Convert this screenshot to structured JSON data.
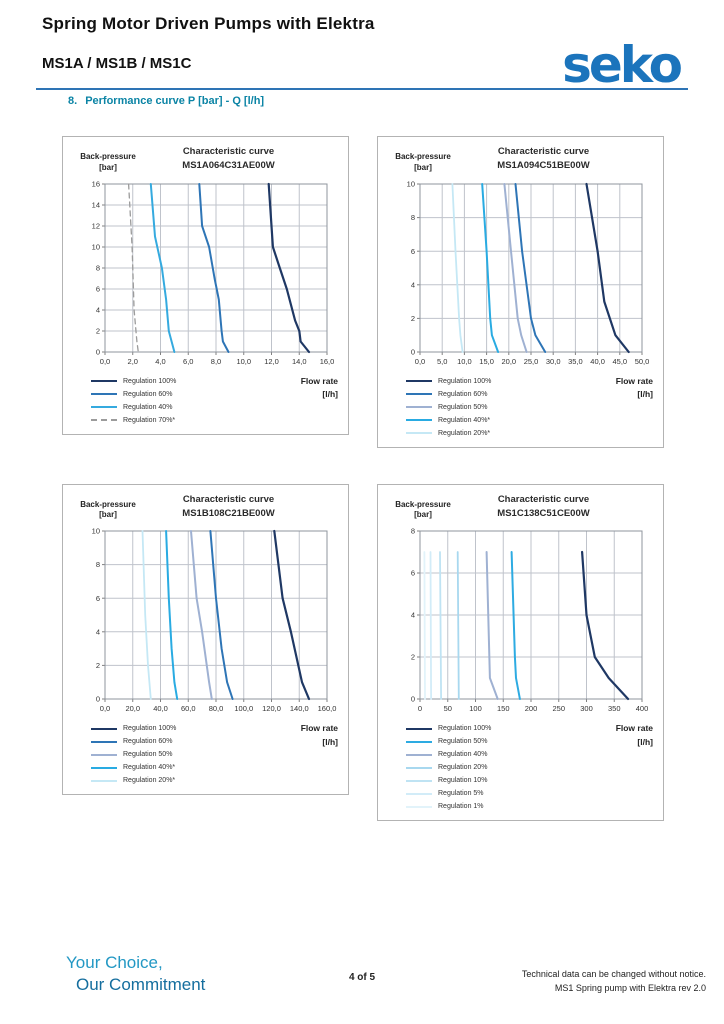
{
  "header": {
    "title": "Spring Motor Driven Pumps with Elektra",
    "subtitle": "MS1A / MS1B / MS1C",
    "logo_text": "seko",
    "brand_color": "#1b74bc",
    "rule_color": "#2e74b5"
  },
  "section": {
    "number": "8.",
    "heading": "Performance curve P [bar] - Q [l/h]",
    "color": "#0b84a5"
  },
  "footer": {
    "tagline_line1": "Your Choice,",
    "tagline_line2": "Our Commitment",
    "page_info": "4 of 5",
    "note_line1": "Technical data can be changed without notice.",
    "note_line2": "MS1 Spring pump with Elektra rev 2.0"
  },
  "chart_data": [
    {
      "type": "line",
      "title": "Characteristic curve",
      "subtitle": "MS1A064C31AE00W",
      "ylabel_line1": "Back-pressure",
      "ylabel_line2": "[bar]",
      "xlabel_line1": "Flow rate",
      "xlabel_line2": "[l/h]",
      "xlim": [
        0,
        16
      ],
      "ylim": [
        0,
        16
      ],
      "grid": true,
      "legend_position": "bottom-left",
      "x_tick_labels": [
        "0,0",
        "2,0",
        "4,0",
        "6,0",
        "8,0",
        "10,0",
        "12,0",
        "14,0",
        "16,0"
      ],
      "y_tick_labels": [
        "0",
        "2",
        "4",
        "6",
        "8",
        "10",
        "12",
        "14",
        "16"
      ],
      "series": [
        {
          "name": "Regulation 100%",
          "color": "#1f3864",
          "width": 2.2,
          "dash": false,
          "points": [
            [
              11.8,
              16
            ],
            [
              12.0,
              12
            ],
            [
              12.1,
              10
            ],
            [
              12.6,
              8
            ],
            [
              13.1,
              6
            ],
            [
              13.7,
              3
            ],
            [
              14.0,
              2
            ],
            [
              14.1,
              1
            ],
            [
              14.7,
              0
            ]
          ]
        },
        {
          "name": "Regulation 60%",
          "color": "#2e75b6",
          "width": 2,
          "dash": false,
          "points": [
            [
              6.8,
              16
            ],
            [
              7.0,
              12
            ],
            [
              7.5,
              10
            ],
            [
              7.9,
              7
            ],
            [
              8.2,
              5
            ],
            [
              8.4,
              2
            ],
            [
              8.5,
              1
            ],
            [
              8.9,
              0
            ]
          ]
        },
        {
          "name": "Regulation 40%",
          "color": "#35aadf",
          "width": 2,
          "dash": false,
          "points": [
            [
              3.3,
              16
            ],
            [
              3.6,
              11
            ],
            [
              4.1,
              8
            ],
            [
              4.4,
              5
            ],
            [
              4.6,
              2
            ],
            [
              4.8,
              1
            ],
            [
              5.0,
              0
            ]
          ]
        },
        {
          "name": "Regulation 70%*",
          "color": "#9b9b9b",
          "width": 1.3,
          "dash": true,
          "points": [
            [
              1.7,
              16
            ],
            [
              1.95,
              10
            ],
            [
              2.1,
              4
            ],
            [
              2.3,
              1
            ],
            [
              2.4,
              0
            ]
          ]
        }
      ]
    },
    {
      "type": "line",
      "title": "Characteristic curve",
      "subtitle": "MS1A094C51BE00W",
      "ylabel_line1": "Back-pressure",
      "ylabel_line2": "[bar]",
      "xlabel_line1": "Flow rate",
      "xlabel_line2": "[l/h]",
      "xlim": [
        0,
        50
      ],
      "ylim": [
        0,
        10
      ],
      "grid": true,
      "legend_position": "bottom-left",
      "x_tick_labels": [
        "0,0",
        "5,0",
        "10,0",
        "15,0",
        "20,0",
        "25,0",
        "30,0",
        "35,0",
        "40,0",
        "45,0",
        "50,0"
      ],
      "y_tick_labels": [
        "0",
        "2",
        "4",
        "6",
        "8",
        "10"
      ],
      "series": [
        {
          "name": "Regulation 100%",
          "color": "#1f3864",
          "width": 2.2,
          "dash": false,
          "points": [
            [
              37.5,
              10
            ],
            [
              40,
              6
            ],
            [
              41.5,
              3
            ],
            [
              44,
              1
            ],
            [
              47,
              0
            ]
          ]
        },
        {
          "name": "Regulation 60%",
          "color": "#2e75b6",
          "width": 2,
          "dash": false,
          "points": [
            [
              21.5,
              10
            ],
            [
              23,
              6
            ],
            [
              25,
              2
            ],
            [
              26,
              1
            ],
            [
              28.2,
              0
            ]
          ]
        },
        {
          "name": "Regulation 50%",
          "color": "#9fb1d2",
          "width": 2,
          "dash": false,
          "points": [
            [
              19,
              10
            ],
            [
              20.5,
              6
            ],
            [
              22,
              2
            ],
            [
              22.8,
              1
            ],
            [
              24,
              0
            ]
          ]
        },
        {
          "name": "Regulation 40%*",
          "color": "#29abe2",
          "width": 2,
          "dash": false,
          "points": [
            [
              14,
              10
            ],
            [
              15,
              6
            ],
            [
              15.8,
              2
            ],
            [
              16.2,
              1
            ],
            [
              17.6,
              0
            ]
          ]
        },
        {
          "name": "Regulation 20%*",
          "color": "#c5e8f5",
          "width": 1.8,
          "dash": false,
          "points": [
            [
              7.3,
              10
            ],
            [
              8,
              6
            ],
            [
              8.8,
              2
            ],
            [
              9.1,
              1
            ],
            [
              9.6,
              0
            ]
          ]
        }
      ]
    },
    {
      "type": "line",
      "title": "Characteristic curve",
      "subtitle": "MS1B108C21BE00W",
      "ylabel_line1": "Back-pressure",
      "ylabel_line2": "[bar]",
      "xlabel_line1": "Flow rate",
      "xlabel_line2": "[l/h]",
      "xlim": [
        0,
        160
      ],
      "ylim": [
        0,
        10
      ],
      "grid": true,
      "legend_position": "bottom-left",
      "x_tick_labels": [
        "0,0",
        "20,0",
        "40,0",
        "60,0",
        "80,0",
        "100,0",
        "120,0",
        "140,0",
        "160,0"
      ],
      "y_tick_labels": [
        "0",
        "2",
        "4",
        "6",
        "8",
        "10"
      ],
      "series": [
        {
          "name": "Regulation 100%",
          "color": "#1f3864",
          "width": 2.2,
          "dash": false,
          "points": [
            [
              122,
              10
            ],
            [
              128,
              6
            ],
            [
              134,
              4
            ],
            [
              142,
              1
            ],
            [
              147,
              0
            ]
          ]
        },
        {
          "name": "Regulation 60%",
          "color": "#2e75b6",
          "width": 2,
          "dash": false,
          "points": [
            [
              76,
              10
            ],
            [
              80,
              6
            ],
            [
              84,
              3
            ],
            [
              88,
              1
            ],
            [
              92,
              0
            ]
          ]
        },
        {
          "name": "Regulation 50%",
          "color": "#9fb1d2",
          "width": 2,
          "dash": false,
          "points": [
            [
              62,
              10
            ],
            [
              66,
              6
            ],
            [
              70,
              4
            ],
            [
              75,
              1
            ],
            [
              77,
              0
            ]
          ]
        },
        {
          "name": "Regulation 40%*",
          "color": "#29abe2",
          "width": 2,
          "dash": false,
          "points": [
            [
              44,
              10
            ],
            [
              46,
              6
            ],
            [
              48,
              3
            ],
            [
              50,
              1
            ],
            [
              52,
              0
            ]
          ]
        },
        {
          "name": "Regulation 20%*",
          "color": "#c5e8f5",
          "width": 1.8,
          "dash": false,
          "points": [
            [
              27,
              10
            ],
            [
              29,
              5
            ],
            [
              31,
              2
            ],
            [
              33,
              0
            ]
          ]
        }
      ]
    },
    {
      "type": "line",
      "title": "Characteristic curve",
      "subtitle": "MS1C138C51CE00W",
      "ylabel_line1": "Back-pressure",
      "ylabel_line2": "[bar]",
      "xlabel_line1": "Flow rate",
      "xlabel_line2": "[l/h]",
      "xlim": [
        0,
        400
      ],
      "ylim": [
        0,
        8
      ],
      "grid": true,
      "legend_position": "bottom-left",
      "x_tick_labels": [
        "0",
        "50",
        "100",
        "150",
        "200",
        "250",
        "300",
        "350",
        "400"
      ],
      "y_tick_labels": [
        "0",
        "2",
        "4",
        "6",
        "8"
      ],
      "series": [
        {
          "name": "Regulation 100%",
          "color": "#1f3864",
          "width": 2.2,
          "dash": false,
          "points": [
            [
              292,
              7
            ],
            [
              300,
              4
            ],
            [
              315,
              2
            ],
            [
              340,
              1
            ],
            [
              375,
              0
            ]
          ]
        },
        {
          "name": "Regulation 50%",
          "color": "#2dabe2",
          "width": 2,
          "dash": false,
          "points": [
            [
              165,
              7
            ],
            [
              171,
              2
            ],
            [
              173,
              1
            ],
            [
              180,
              0
            ]
          ]
        },
        {
          "name": "Regulation 40%",
          "color": "#9fb1d2",
          "width": 2,
          "dash": false,
          "points": [
            [
              120,
              7
            ],
            [
              126,
              1
            ],
            [
              140,
              0
            ]
          ]
        },
        {
          "name": "Regulation 20%",
          "color": "#a8d8ef",
          "width": 1.8,
          "dash": false,
          "points": [
            [
              68,
              7
            ],
            [
              70,
              0
            ]
          ]
        },
        {
          "name": "Regulation 10%",
          "color": "#bfe3f3",
          "width": 1.8,
          "dash": false,
          "points": [
            [
              36,
              7
            ],
            [
              38,
              0
            ]
          ]
        },
        {
          "name": "Regulation 5%",
          "color": "#d2ecf8",
          "width": 1.8,
          "dash": false,
          "points": [
            [
              19,
              7
            ],
            [
              20,
              0
            ]
          ]
        },
        {
          "name": "Regulation 1%",
          "color": "#e2f3fa",
          "width": 1.8,
          "dash": false,
          "points": [
            [
              8,
              7
            ],
            [
              9,
              0
            ]
          ]
        }
      ]
    }
  ]
}
